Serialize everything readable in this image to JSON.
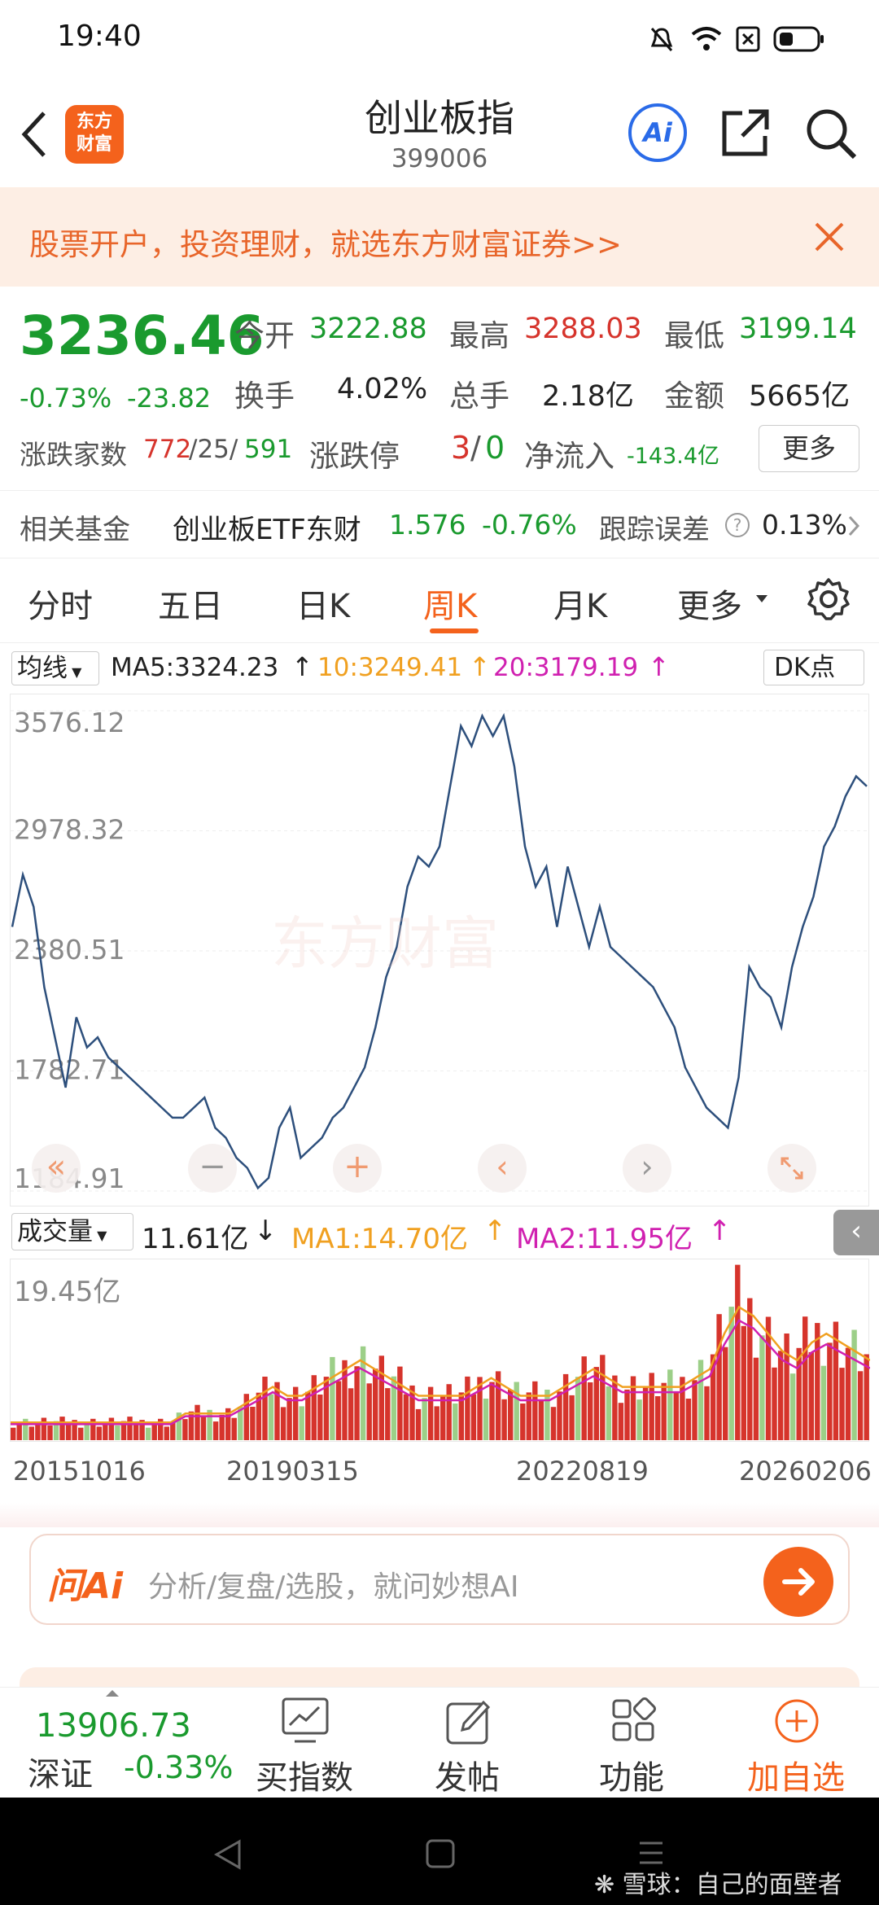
{
  "status_bar": {
    "time": "19:40"
  },
  "header": {
    "title": "创业板指",
    "code": "399006",
    "logo_text_1": "东方",
    "logo_text_2": "财富",
    "ai_label": "Ai"
  },
  "banner": {
    "text": "股票开户，投资理财，就选东方财富证券>>"
  },
  "quote": {
    "price": "3236.46",
    "change_pct": "-0.73%",
    "change": "-23.82",
    "open_label": "今开",
    "open": "3222.88",
    "high_label": "最高",
    "high": "3288.03",
    "low_label": "最低",
    "low": "3199.14",
    "turnover_label": "换手",
    "turnover": "4.02%",
    "volume_label": "总手",
    "volume": "2.18亿",
    "amount_label": "金额",
    "amount": "5665亿",
    "breadth_label": "涨跌家数",
    "up": "772",
    "flat": "/25/",
    "down": "591",
    "limit_label": "涨跌停",
    "limit_up": "3",
    "limit_sep": "/",
    "limit_down": "0",
    "netflow_label": "净流入",
    "netflow": "-143.4亿",
    "more_button": "更多"
  },
  "fund": {
    "label": "相关基金",
    "name": "创业板ETF东财",
    "price": "1.576",
    "change": "-0.76%",
    "tracking_label": "跟踪误差",
    "tracking": "0.13%"
  },
  "tabs": [
    {
      "label": "分时"
    },
    {
      "label": "五日"
    },
    {
      "label": "日K"
    },
    {
      "label": "周K"
    },
    {
      "label": "月K"
    },
    {
      "label": "更多"
    }
  ],
  "ma_bar": {
    "selector": "均线",
    "ma5": "MA5:3324.23",
    "ma10": "10:3249.41",
    "ma20": "20:3179.19",
    "dk": "DK点"
  },
  "vol_bar": {
    "selector": "成交量",
    "value": "11.61亿",
    "ma1": "MA1:14.70亿",
    "ma2": "MA2:11.95亿",
    "max_label": "19.45亿"
  },
  "colors": {
    "accent": "#ff6a1a",
    "up": "#d6342c",
    "down": "#1a9a2e",
    "line": "#2d4f7c",
    "ma10": "#f0a020",
    "ma20": "#d020b0"
  },
  "chart_data": {
    "type": "line",
    "y_ticks": [
      "3576.12",
      "2978.32",
      "2380.51",
      "1782.71",
      "1184.91"
    ],
    "ylim": [
      1184.91,
      3576.12
    ],
    "x_ticks": [
      "20151016",
      "20190315",
      "20220819",
      "20260206"
    ],
    "series": [
      {
        "values": [
          2500,
          2760,
          2600,
          2200,
          1950,
          1700,
          2050,
          1900,
          1950,
          1850,
          1800,
          1750,
          1700,
          1650,
          1600,
          1550,
          1550,
          1600,
          1650,
          1500,
          1450,
          1350,
          1300,
          1200,
          1250,
          1500,
          1600,
          1350,
          1400,
          1450,
          1550,
          1600,
          1700,
          1800,
          2000,
          2250,
          2400,
          2700,
          2850,
          2800,
          2900,
          3200,
          3500,
          3400,
          3550,
          3450,
          3550,
          3300,
          2900,
          2700,
          2800,
          2500,
          2800,
          2600,
          2400,
          2600,
          2400,
          2350,
          2300,
          2250,
          2200,
          2100,
          2000,
          1800,
          1700,
          1600,
          1550,
          1500,
          1750,
          2300,
          2200,
          2150,
          2000,
          2300,
          2500,
          2650,
          2900,
          3000,
          3150,
          3250,
          3200
        ]
      }
    ],
    "volume": {
      "ylim": [
        0,
        19.45
      ],
      "ma1": [
        2,
        2,
        2,
        2,
        2,
        2,
        2,
        2,
        2,
        2,
        2,
        2,
        3,
        3,
        3,
        3,
        4,
        5,
        6,
        5,
        5,
        6,
        7,
        8,
        9,
        8,
        7,
        6,
        5,
        5,
        5,
        5,
        6,
        7,
        6,
        5,
        5,
        5,
        6,
        7,
        8,
        7,
        6,
        6,
        6,
        6,
        6,
        7,
        8,
        12,
        15,
        14,
        12,
        10,
        9,
        11,
        12,
        11,
        10,
        9
      ]
    }
  }
}
